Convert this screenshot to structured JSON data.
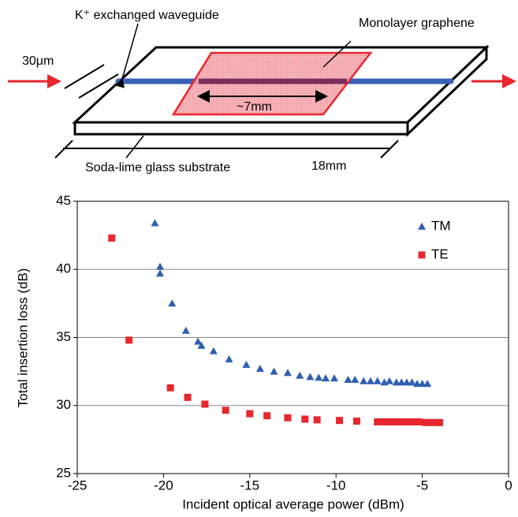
{
  "diagram": {
    "waveguide_label": "K⁺ exchanged waveguide",
    "graphene_label": "Monolayer graphene",
    "width_label": "30μm",
    "graphene_length_label": "~7mm",
    "substrate_label": "Soda-lime glass substrate",
    "substrate_length_label": "18mm"
  },
  "chart_data": {
    "type": "scatter",
    "x_label": "Incident optical average power (dBm)",
    "y_label": "Total insertion loss (dB)",
    "xlim": [
      -25,
      0
    ],
    "xticks": [
      -25,
      -20,
      -15,
      -10,
      -5,
      0
    ],
    "ylim": [
      25,
      45
    ],
    "yticks": [
      25,
      30,
      35,
      40,
      45
    ],
    "grid": true,
    "legend": "upper right",
    "series": [
      {
        "name": "TM",
        "color": "#2e5fb0",
        "marker": "triangle",
        "x": [
          -20.5,
          -20.2,
          -20.2,
          -19.5,
          -18.7,
          -18.0,
          -17.8,
          -17.1,
          -16.2,
          -15.2,
          -14.4,
          -13.6,
          -12.8,
          -12.1,
          -11.5,
          -11.0,
          -10.6,
          -10.1,
          -9.3,
          -8.9,
          -8.4,
          -8.0,
          -7.6,
          -7.2,
          -6.9,
          -6.5,
          -6.2,
          -5.9,
          -5.6,
          -5.3,
          -5.0,
          -4.7
        ],
        "values": [
          43.4,
          40.2,
          39.7,
          37.5,
          35.5,
          34.7,
          34.4,
          34.0,
          33.4,
          33.0,
          32.7,
          32.5,
          32.4,
          32.2,
          32.1,
          32.05,
          32.0,
          32.0,
          31.9,
          31.9,
          31.8,
          31.8,
          31.8,
          31.7,
          31.8,
          31.7,
          31.7,
          31.7,
          31.7,
          31.6,
          31.6,
          31.6
        ]
      },
      {
        "name": "TE",
        "color": "#e8262e",
        "marker": "square",
        "x": [
          -23.0,
          -22.0,
          -19.6,
          -18.6,
          -17.6,
          -16.4,
          -15.0,
          -14.0,
          -12.8,
          -11.8,
          -11.1,
          -9.8,
          -8.8,
          -7.6,
          -7.2,
          -6.8,
          -6.4,
          -6.0,
          -5.6,
          -5.2,
          -4.8,
          -4.4,
          -4.0
        ],
        "values": [
          42.3,
          34.8,
          31.3,
          30.6,
          30.1,
          29.65,
          29.4,
          29.25,
          29.1,
          29.0,
          28.95,
          28.9,
          28.85,
          28.8,
          28.8,
          28.8,
          28.8,
          28.8,
          28.8,
          28.8,
          28.75,
          28.75,
          28.75
        ]
      }
    ]
  }
}
